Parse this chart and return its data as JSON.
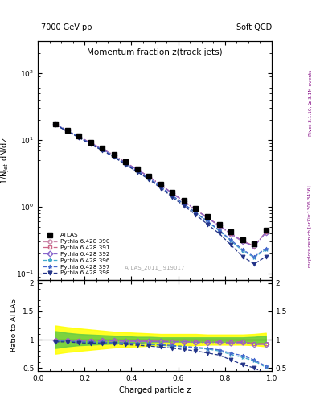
{
  "title_top_left": "7000 GeV pp",
  "title_top_right": "Soft QCD",
  "main_title": "Momentum fraction z(track jets)",
  "xlabel": "Charged particle z",
  "ylabel_main": "1/N$_{jet}$ dN/dz",
  "ylabel_ratio": "Ratio to ATLAS",
  "right_label_top": "Rivet 3.1.10, ≥ 3.1M events",
  "right_label_bot": "mcplots.cern.ch [arXiv:1306.3436]",
  "watermark": "ATLAS_2011_I919017",
  "x_data": [
    0.075,
    0.125,
    0.175,
    0.225,
    0.275,
    0.325,
    0.375,
    0.425,
    0.475,
    0.525,
    0.575,
    0.625,
    0.675,
    0.725,
    0.775,
    0.825,
    0.875,
    0.925,
    0.975
  ],
  "atlas_y": [
    17.5,
    14.0,
    11.5,
    9.2,
    7.5,
    6.0,
    4.7,
    3.7,
    2.9,
    2.2,
    1.65,
    1.25,
    0.95,
    0.72,
    0.55,
    0.42,
    0.32,
    0.28,
    0.45
  ],
  "atlas_yerr_lo": [
    0.8,
    0.6,
    0.5,
    0.4,
    0.35,
    0.28,
    0.22,
    0.17,
    0.13,
    0.1,
    0.08,
    0.06,
    0.05,
    0.04,
    0.03,
    0.02,
    0.02,
    0.02,
    0.03
  ],
  "atlas_yerr_hi": [
    0.8,
    0.6,
    0.5,
    0.4,
    0.35,
    0.28,
    0.22,
    0.17,
    0.13,
    0.1,
    0.08,
    0.06,
    0.05,
    0.04,
    0.03,
    0.02,
    0.02,
    0.02,
    0.03
  ],
  "mc_lines": [
    {
      "label": "Pythia 6.428 390",
      "color": "#cc88aa",
      "linestyle": "-.",
      "marker": "o",
      "mfc": "none",
      "y": [
        17.2,
        13.8,
        11.2,
        8.95,
        7.3,
        5.85,
        4.55,
        3.58,
        2.8,
        2.12,
        1.58,
        1.2,
        0.9,
        0.68,
        0.52,
        0.39,
        0.3,
        0.26,
        0.41
      ]
    },
    {
      "label": "Pythia 6.428 391",
      "color": "#cc6688",
      "linestyle": "-.",
      "marker": "s",
      "mfc": "none",
      "y": [
        17.3,
        13.9,
        11.3,
        9.05,
        7.4,
        5.92,
        4.6,
        3.62,
        2.83,
        2.14,
        1.6,
        1.21,
        0.91,
        0.69,
        0.53,
        0.4,
        0.31,
        0.26,
        0.42
      ]
    },
    {
      "label": "Pythia 6.428 392",
      "color": "#8866cc",
      "linestyle": "-.",
      "marker": "D",
      "mfc": "none",
      "y": [
        17.25,
        13.85,
        11.25,
        9.0,
        7.35,
        5.88,
        4.57,
        3.6,
        2.81,
        2.13,
        1.59,
        1.205,
        0.905,
        0.685,
        0.525,
        0.395,
        0.305,
        0.255,
        0.415
      ]
    },
    {
      "label": "Pythia 6.428 396",
      "color": "#44aacc",
      "linestyle": "--",
      "marker": "*",
      "mfc": "none",
      "y": [
        17.0,
        13.6,
        11.0,
        8.75,
        7.1,
        5.65,
        4.38,
        3.42,
        2.65,
        1.98,
        1.46,
        1.09,
        0.81,
        0.6,
        0.44,
        0.31,
        0.22,
        0.175,
        0.23
      ]
    },
    {
      "label": "Pythia 6.428 397",
      "color": "#4466cc",
      "linestyle": "--",
      "marker": "*",
      "mfc": "none",
      "y": [
        17.05,
        13.65,
        11.05,
        8.8,
        7.15,
        5.7,
        4.42,
        3.45,
        2.68,
        2.0,
        1.48,
        1.1,
        0.82,
        0.61,
        0.45,
        0.32,
        0.23,
        0.18,
        0.24
      ]
    },
    {
      "label": "Pythia 6.428 398",
      "color": "#223388",
      "linestyle": "--",
      "marker": "v",
      "mfc": "#223388",
      "y": [
        16.8,
        13.45,
        10.85,
        8.62,
        6.98,
        5.55,
        4.28,
        3.33,
        2.57,
        1.91,
        1.4,
        1.03,
        0.76,
        0.55,
        0.4,
        0.27,
        0.18,
        0.14,
        0.18
      ]
    }
  ],
  "ratio_green_band_x": [
    0.075,
    0.125,
    0.175,
    0.225,
    0.275,
    0.325,
    0.375,
    0.425,
    0.475,
    0.525,
    0.575,
    0.625,
    0.675,
    0.725,
    0.775,
    0.825,
    0.875,
    0.925,
    0.975
  ],
  "ratio_green_lo": [
    0.85,
    0.88,
    0.9,
    0.91,
    0.92,
    0.93,
    0.94,
    0.95,
    0.95,
    0.96,
    0.96,
    0.96,
    0.96,
    0.96,
    0.96,
    0.96,
    0.96,
    0.95,
    0.93
  ],
  "ratio_green_hi": [
    1.15,
    1.12,
    1.1,
    1.09,
    1.08,
    1.07,
    1.06,
    1.05,
    1.05,
    1.04,
    1.04,
    1.04,
    1.04,
    1.04,
    1.04,
    1.04,
    1.04,
    1.05,
    1.07
  ],
  "ratio_yellow_lo": [
    0.75,
    0.78,
    0.8,
    0.82,
    0.84,
    0.86,
    0.87,
    0.88,
    0.89,
    0.9,
    0.9,
    0.9,
    0.9,
    0.91,
    0.91,
    0.91,
    0.91,
    0.9,
    0.88
  ],
  "ratio_yellow_hi": [
    1.25,
    1.22,
    1.2,
    1.18,
    1.16,
    1.14,
    1.13,
    1.12,
    1.11,
    1.1,
    1.1,
    1.1,
    1.1,
    1.09,
    1.09,
    1.09,
    1.09,
    1.1,
    1.12
  ],
  "xlim": [
    0.0,
    1.0
  ],
  "ylim_main": [
    0.08,
    300
  ],
  "ylim_ratio": [
    0.45,
    2.05
  ],
  "background_color": "#ffffff"
}
